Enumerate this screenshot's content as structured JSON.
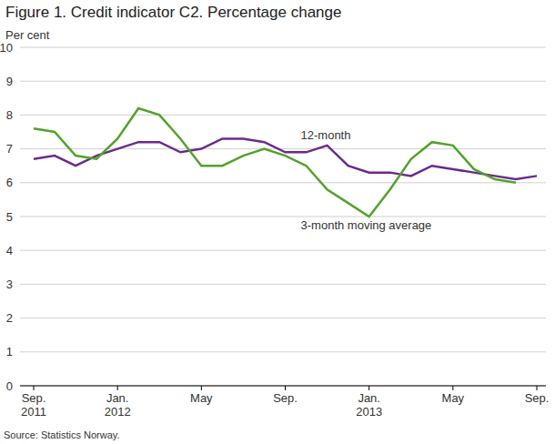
{
  "chart_data": {
    "type": "line",
    "title": "Figure 1. Credit indicator C2. Percentage change",
    "y_label": "Per cent",
    "source": "Source: Statistics Norway.",
    "categories": [
      "Sep.\n2011",
      null,
      null,
      null,
      "Jan.\n2012",
      null,
      null,
      null,
      "May",
      null,
      null,
      null,
      "Sep.",
      null,
      null,
      null,
      "Jan.\n2013",
      null,
      null,
      null,
      "May",
      null,
      null,
      null,
      "Sep."
    ],
    "series": [
      {
        "name": "12-month",
        "color": "#6b2a8a",
        "values": [
          6.7,
          6.8,
          6.5,
          6.8,
          7.0,
          7.2,
          7.2,
          6.9,
          7.0,
          7.3,
          7.3,
          7.2,
          6.9,
          6.9,
          7.1,
          6.5,
          6.3,
          6.3,
          6.2,
          6.5,
          6.4,
          6.3,
          6.2,
          6.1,
          6.2
        ]
      },
      {
        "name": "3-month moving average",
        "color": "#53a22b",
        "values": [
          7.6,
          7.5,
          6.8,
          6.7,
          7.3,
          8.2,
          8.0,
          7.3,
          6.5,
          6.5,
          6.8,
          7.0,
          6.8,
          6.5,
          5.8,
          5.4,
          5.0,
          5.8,
          6.7,
          7.2,
          7.1,
          6.4,
          6.1,
          6.0,
          null
        ]
      }
    ],
    "ylim": [
      0,
      10
    ],
    "yticks": [
      0,
      1,
      2,
      3,
      4,
      5,
      6,
      7,
      8,
      9,
      10
    ],
    "grid": true
  }
}
